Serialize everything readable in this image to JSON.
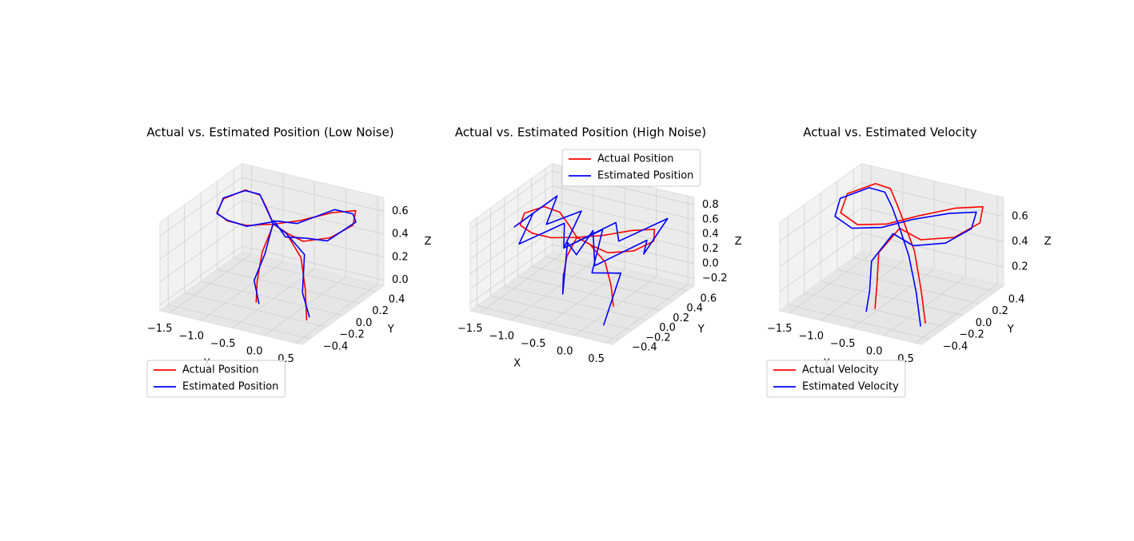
{
  "chart_data": [
    {
      "type": "line3d",
      "title": "Actual vs. Estimated Position (Low Noise)",
      "xlabel": "X",
      "ylabel": "Y",
      "zlabel": "Z",
      "xlim": [
        -1.65,
        0.6
      ],
      "ylim": [
        -0.5,
        0.5
      ],
      "zlim": [
        -0.05,
        0.72
      ],
      "xticks": [
        {
          "value": -1.5,
          "label": "−1.5"
        },
        {
          "value": -1.0,
          "label": "−1.0"
        },
        {
          "value": -0.5,
          "label": "−0.5"
        },
        {
          "value": 0,
          "label": "0.0"
        },
        0.5
      ],
      "yticks": [
        {
          "value": -0.4,
          "label": "−0.4"
        },
        {
          "value": -0.2,
          "label": "−0.2"
        },
        {
          "value": 0,
          "label": "0.0"
        },
        0.2,
        0.4
      ],
      "zticks": [
        {
          "value": 0,
          "label": "0.0"
        },
        0.2,
        0.4,
        0.6
      ],
      "grid": true,
      "legend": "lower left",
      "series": [
        {
          "name": "Actual Position",
          "color": "#ff0000",
          "x": [
            0.35,
            0.2,
            0.0,
            -0.3,
            -0.5,
            -0.8,
            -1.1,
            -1.4,
            -1.55,
            -1.4,
            -1.1,
            -0.8,
            -0.5,
            -0.2,
            0.1,
            0.35,
            0.5,
            0.4,
            0.1,
            -0.2,
            -0.5,
            -0.55,
            -0.5,
            -0.45
          ],
          "y": [
            -0.25,
            -0.15,
            -0.05,
            0.0,
            0.0,
            0.15,
            0.3,
            0.35,
            0.2,
            0.0,
            -0.1,
            -0.1,
            0.0,
            0.1,
            0.25,
            0.35,
            0.2,
            0.0,
            -0.1,
            -0.05,
            0.0,
            -0.1,
            -0.2,
            -0.25
          ],
          "z": [
            0.0,
            0.2,
            0.4,
            0.55,
            0.6,
            0.62,
            0.62,
            0.6,
            0.58,
            0.58,
            0.6,
            0.6,
            0.6,
            0.62,
            0.65,
            0.65,
            0.62,
            0.6,
            0.58,
            0.58,
            0.6,
            0.4,
            0.2,
            0.05
          ]
        },
        {
          "name": "Estimated Position",
          "color": "#0000ff",
          "x": [
            0.37,
            0.18,
            0.03,
            -0.32,
            -0.48,
            -0.83,
            -1.08,
            -1.43,
            -1.53,
            -1.42,
            -1.07,
            -0.82,
            -0.47,
            -0.23,
            0.12,
            0.33,
            0.52,
            0.38,
            0.12,
            -0.22,
            -0.52,
            -0.53,
            -0.52,
            -0.43
          ],
          "y": [
            -0.23,
            -0.17,
            -0.03,
            0.02,
            -0.02,
            0.17,
            0.28,
            0.37,
            0.18,
            0.02,
            -0.12,
            -0.08,
            0.02,
            0.08,
            0.27,
            0.33,
            0.22,
            -0.02,
            -0.08,
            -0.07,
            0.02,
            -0.08,
            -0.22,
            -0.23
          ],
          "z": [
            0.02,
            0.18,
            0.42,
            0.53,
            0.62,
            0.6,
            0.64,
            0.58,
            0.6,
            0.56,
            0.62,
            0.58,
            0.62,
            0.6,
            0.67,
            0.63,
            0.64,
            0.58,
            0.6,
            0.56,
            0.62,
            0.38,
            0.22,
            0.03
          ]
        }
      ]
    },
    {
      "type": "line3d",
      "title": "Actual vs. Estimated Position (High Noise)",
      "xlabel": "X",
      "ylabel": "Y",
      "zlabel": "Z",
      "xlim": [
        -1.65,
        0.6
      ],
      "ylim": [
        -0.5,
        0.7
      ],
      "zlim": [
        -0.3,
        0.9
      ],
      "xticks": [
        {
          "value": -1.5,
          "label": "−1.5"
        },
        {
          "value": -1.0,
          "label": "−1.0"
        },
        {
          "value": -0.5,
          "label": "−0.5"
        },
        {
          "value": 0,
          "label": "0.0"
        },
        0.5
      ],
      "yticks": [
        {
          "value": -0.4,
          "label": "−0.4"
        },
        {
          "value": -0.2,
          "label": "−0.2"
        },
        {
          "value": 0,
          "label": "0.0"
        },
        0.2,
        0.4,
        0.6
      ],
      "zticks": [
        {
          "value": -0.2,
          "label": "−0.2"
        },
        {
          "value": 0,
          "label": "0.0"
        },
        0.2,
        0.4,
        0.6,
        0.8
      ],
      "grid": true,
      "legend": "upper right",
      "series": [
        {
          "name": "Actual Position",
          "color": "#ff0000",
          "x": [
            0.35,
            0.2,
            0.0,
            -0.3,
            -0.5,
            -0.8,
            -1.1,
            -1.4,
            -1.55,
            -1.4,
            -1.1,
            -0.8,
            -0.5,
            -0.2,
            0.1,
            0.35,
            0.5,
            0.4,
            0.1,
            -0.2,
            -0.5,
            -0.55,
            -0.5,
            -0.45
          ],
          "y": [
            -0.25,
            -0.15,
            -0.05,
            0.0,
            0.0,
            0.15,
            0.3,
            0.35,
            0.2,
            0.0,
            -0.1,
            -0.1,
            0.0,
            0.1,
            0.25,
            0.35,
            0.2,
            0.0,
            -0.1,
            -0.05,
            0.0,
            -0.1,
            -0.2,
            -0.25
          ],
          "z": [
            0.0,
            0.2,
            0.4,
            0.55,
            0.6,
            0.62,
            0.62,
            0.6,
            0.58,
            0.58,
            0.6,
            0.6,
            0.6,
            0.62,
            0.65,
            0.65,
            0.62,
            0.6,
            0.58,
            0.58,
            0.6,
            0.4,
            0.2,
            0.05
          ]
        },
        {
          "name": "Estimated Position",
          "color": "#0000ff",
          "x": [
            0.3,
            0.25,
            -0.1,
            -0.2,
            -0.6,
            -0.7,
            -1.2,
            -1.3,
            -1.6,
            -1.3,
            -1.2,
            -0.7,
            -0.6,
            -0.1,
            0.0,
            0.45,
            0.45,
            0.5,
            0.0,
            -0.3,
            -0.4,
            -0.65,
            -0.4,
            -0.55
          ],
          "y": [
            -0.35,
            -0.05,
            -0.15,
            0.1,
            -0.1,
            0.25,
            0.2,
            0.45,
            0.1,
            0.1,
            -0.2,
            0.0,
            -0.1,
            0.2,
            0.15,
            0.45,
            0.1,
            0.1,
            -0.2,
            0.05,
            -0.1,
            0.0,
            -0.3,
            -0.15
          ],
          "z": [
            -0.2,
            0.3,
            0.3,
            0.7,
            0.5,
            0.75,
            0.5,
            0.7,
            0.45,
            0.7,
            0.5,
            0.75,
            0.5,
            0.75,
            0.55,
            0.75,
            0.5,
            0.7,
            0.45,
            0.7,
            0.45,
            0.5,
            0.05,
            0.2
          ]
        }
      ]
    },
    {
      "type": "line3d",
      "title": "Actual vs. Estimated Velocity",
      "xlabel": "X",
      "ylabel": "Y",
      "zlabel": "Z",
      "xlim": [
        -1.65,
        0.6
      ],
      "ylim": [
        -0.5,
        0.5
      ],
      "zlim": [
        0.05,
        0.75
      ],
      "xticks": [
        {
          "value": -1.5,
          "label": "−1.5"
        },
        {
          "value": -1.0,
          "label": "−1.0"
        },
        {
          "value": -0.5,
          "label": "−0.5"
        },
        {
          "value": 0,
          "label": "0.0"
        },
        0.5
      ],
      "yticks": [
        {
          "value": -0.4,
          "label": "−0.4"
        },
        {
          "value": -0.2,
          "label": "−0.2"
        },
        {
          "value": 0,
          "label": "0.0"
        },
        0.2,
        0.4
      ],
      "zticks": [
        0.2,
        0.4,
        0.6
      ],
      "grid": true,
      "legend": "lower left",
      "series": [
        {
          "name": "Actual Velocity",
          "color": "#ff0000",
          "x": [
            0.4,
            0.2,
            -0.1,
            -0.4,
            -0.7,
            -1.0,
            -1.3,
            -1.55,
            -1.4,
            -1.0,
            -0.6,
            -0.3,
            0.1,
            0.4,
            0.55,
            0.4,
            0.0,
            -0.4,
            -0.6,
            -0.5,
            -0.4
          ],
          "y": [
            -0.3,
            -0.2,
            -0.05,
            0.05,
            0.2,
            0.35,
            0.4,
            0.25,
            0.05,
            -0.05,
            0.0,
            0.15,
            0.3,
            0.4,
            0.25,
            0.05,
            -0.05,
            0.0,
            -0.1,
            -0.2,
            -0.3
          ],
          "z": [
            0.1,
            0.3,
            0.5,
            0.65,
            0.68,
            0.7,
            0.68,
            0.64,
            0.6,
            0.6,
            0.63,
            0.66,
            0.7,
            0.7,
            0.66,
            0.62,
            0.6,
            0.62,
            0.45,
            0.25,
            0.12
          ]
        },
        {
          "name": "Estimated Velocity",
          "color": "#0000ff",
          "x": [
            0.35,
            0.15,
            -0.15,
            -0.45,
            -0.75,
            -1.05,
            -1.35,
            -1.6,
            -1.45,
            -1.05,
            -0.65,
            -0.35,
            0.05,
            0.35,
            0.48,
            0.33,
            -0.05,
            -0.45,
            -0.65,
            -0.55,
            -0.5
          ],
          "y": [
            -0.32,
            -0.22,
            -0.08,
            0.03,
            0.18,
            0.32,
            0.36,
            0.2,
            0.02,
            -0.08,
            -0.03,
            0.12,
            0.26,
            0.36,
            0.2,
            0.0,
            -0.1,
            -0.04,
            -0.15,
            -0.25,
            -0.33
          ],
          "z": [
            0.08,
            0.28,
            0.47,
            0.62,
            0.66,
            0.68,
            0.66,
            0.62,
            0.58,
            0.58,
            0.61,
            0.64,
            0.67,
            0.67,
            0.63,
            0.59,
            0.57,
            0.59,
            0.4,
            0.22,
            0.1
          ]
        }
      ]
    }
  ]
}
